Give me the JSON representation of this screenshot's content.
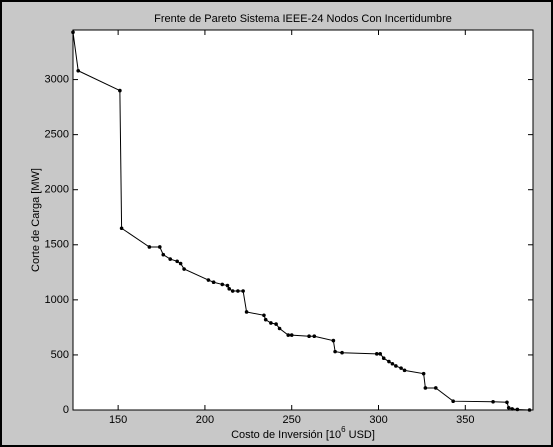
{
  "chart_data": {
    "type": "line",
    "title": "Frente de Pareto Sistema IEEE-24 Nodos Con Incertidumbre",
    "xlabel": [
      "Costo de Inversión [10",
      "6",
      " USD]"
    ],
    "ylabel": "Corte de Carga [MW]",
    "x": [
      124,
      127,
      151,
      152,
      168,
      174,
      176,
      180,
      184,
      186,
      188,
      202,
      205,
      210,
      213,
      214,
      216,
      219,
      222,
      224,
      234,
      235,
      238,
      241,
      243,
      248,
      250,
      260,
      263,
      274,
      275,
      279,
      299,
      301,
      303,
      306,
      308,
      310,
      313,
      315,
      326,
      327,
      333,
      343,
      366,
      374,
      375,
      377,
      380,
      387
    ],
    "values": [
      3430,
      3080,
      2900,
      1650,
      1480,
      1480,
      1410,
      1370,
      1350,
      1330,
      1280,
      1180,
      1160,
      1140,
      1130,
      1100,
      1080,
      1080,
      1080,
      890,
      860,
      820,
      790,
      780,
      740,
      680,
      680,
      670,
      670,
      630,
      530,
      520,
      510,
      510,
      470,
      440,
      420,
      400,
      380,
      360,
      330,
      200,
      200,
      80,
      75,
      70,
      20,
      10,
      5,
      0
    ],
    "color": "#000000",
    "xlim": [
      124,
      389
    ],
    "ylim": [
      0,
      3450
    ],
    "xticks": [
      150,
      200,
      250,
      300,
      350
    ],
    "yticks": [
      0,
      500,
      1000,
      1500,
      2000,
      2500,
      3000
    ],
    "grid": false
  }
}
